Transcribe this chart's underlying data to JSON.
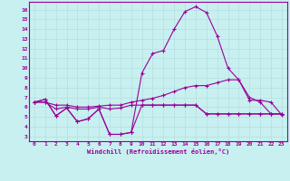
{
  "xlabel": "Windchill (Refroidissement éolien,°C)",
  "background_color": "#c8f0f0",
  "grid_color": "#b8dede",
  "line_color": "#990099",
  "xticks": [
    0,
    1,
    2,
    3,
    4,
    5,
    6,
    7,
    8,
    9,
    10,
    11,
    12,
    13,
    14,
    15,
    16,
    17,
    18,
    19,
    20,
    21,
    22,
    23
  ],
  "yticks": [
    3,
    4,
    5,
    6,
    7,
    8,
    9,
    10,
    11,
    12,
    13,
    14,
    15,
    16
  ],
  "xlim": [
    -0.5,
    23.5
  ],
  "ylim": [
    2.5,
    16.8
  ],
  "s1_x": [
    0,
    1,
    2,
    3,
    4,
    5,
    6,
    7,
    8,
    9
  ],
  "s1_y": [
    6.5,
    6.8,
    5.1,
    5.9,
    4.5,
    4.8,
    5.8,
    3.2,
    3.2,
    3.4
  ],
  "s2_x": [
    9,
    10,
    11,
    12,
    13,
    14,
    15,
    16,
    17,
    18,
    19,
    20,
    21,
    22,
    23
  ],
  "s2_y": [
    3.4,
    6.2,
    6.2,
    6.2,
    6.2,
    6.2,
    6.2,
    5.3,
    5.3,
    5.3,
    5.3,
    5.3,
    5.3,
    5.3,
    5.3
  ],
  "s3_x": [
    0,
    1,
    2,
    3,
    4,
    5,
    6,
    7,
    8,
    9,
    10,
    11,
    12,
    13,
    14,
    15,
    16,
    17,
    18,
    19,
    20,
    21,
    22,
    23
  ],
  "s3_y": [
    6.5,
    6.5,
    6.2,
    6.2,
    6.0,
    6.0,
    6.1,
    6.2,
    6.2,
    6.5,
    6.7,
    6.9,
    7.2,
    7.6,
    8.0,
    8.2,
    8.2,
    8.5,
    8.8,
    8.8,
    6.7,
    6.7,
    6.5,
    5.2
  ],
  "s4_x": [
    0,
    1,
    2,
    3,
    4,
    5,
    6,
    7,
    8,
    9,
    10,
    11,
    12,
    13,
    14,
    15,
    16,
    17,
    18,
    19,
    20,
    21,
    22,
    23
  ],
  "s4_y": [
    6.5,
    6.5,
    5.8,
    6.0,
    5.8,
    5.8,
    6.0,
    5.8,
    5.9,
    6.2,
    6.2,
    6.2,
    6.2,
    6.2,
    6.2,
    6.2,
    5.3,
    5.3,
    5.3,
    5.3,
    5.3,
    5.3,
    5.3,
    5.3
  ],
  "s5_x": [
    0,
    1,
    2,
    3,
    4,
    5,
    6,
    7,
    8,
    9,
    10,
    11,
    12,
    13,
    14,
    15,
    16,
    17,
    18,
    19,
    20,
    21,
    22,
    23
  ],
  "s5_y": [
    6.5,
    6.8,
    5.1,
    5.9,
    4.5,
    4.8,
    5.8,
    3.2,
    3.2,
    3.4,
    9.5,
    11.5,
    11.8,
    14.0,
    15.8,
    16.3,
    15.7,
    13.3,
    10.0,
    8.8,
    7.0,
    6.5,
    5.3,
    5.3
  ]
}
